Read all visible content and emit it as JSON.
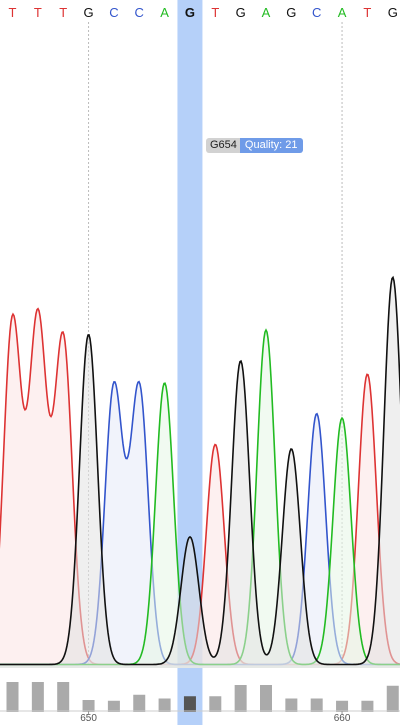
{
  "chart_data": {
    "type": "line",
    "title": "",
    "xlabel": "",
    "ylabel": "",
    "base_colors": {
      "A": "#22bb22",
      "C": "#3355cc",
      "G": "#111111",
      "T": "#dd3333"
    },
    "highlight_color": "#a8c8f8",
    "selected_position": 654,
    "bases": [
      {
        "pos": 647,
        "base": "T",
        "quality": 40,
        "peak": 0.78
      },
      {
        "pos": 648,
        "base": "T",
        "quality": 40,
        "peak": 0.78
      },
      {
        "pos": 649,
        "base": "T",
        "quality": 40,
        "peak": 0.74
      },
      {
        "pos": 650,
        "base": "G",
        "quality": 16,
        "peak": 0.75
      },
      {
        "pos": 651,
        "base": "C",
        "quality": 15,
        "peak": 0.63
      },
      {
        "pos": 652,
        "base": "C",
        "quality": 23,
        "peak": 0.63
      },
      {
        "pos": 653,
        "base": "A",
        "quality": 18,
        "peak": 0.64
      },
      {
        "pos": 654,
        "base": "G",
        "quality": 21,
        "peak": 0.29
      },
      {
        "pos": 655,
        "base": "T",
        "quality": 21,
        "peak": 0.5
      },
      {
        "pos": 656,
        "base": "G",
        "quality": 36,
        "peak": 0.69
      },
      {
        "pos": 657,
        "base": "A",
        "quality": 36,
        "peak": 0.76
      },
      {
        "pos": 658,
        "base": "G",
        "quality": 18,
        "peak": 0.49
      },
      {
        "pos": 659,
        "base": "C",
        "quality": 18,
        "peak": 0.57
      },
      {
        "pos": 660,
        "base": "A",
        "quality": 15,
        "peak": 0.56
      },
      {
        "pos": 661,
        "base": "T",
        "quality": 15,
        "peak": 0.66
      },
      {
        "pos": 662,
        "base": "G",
        "quality": 35,
        "peak": 0.88
      }
    ],
    "axis_ticks": [
      {
        "pos": 650,
        "label": "650"
      },
      {
        "pos": 660,
        "label": "660"
      }
    ]
  },
  "tooltip": {
    "position_label": "G654",
    "quality_label": "Quality:",
    "quality_value": "21"
  }
}
